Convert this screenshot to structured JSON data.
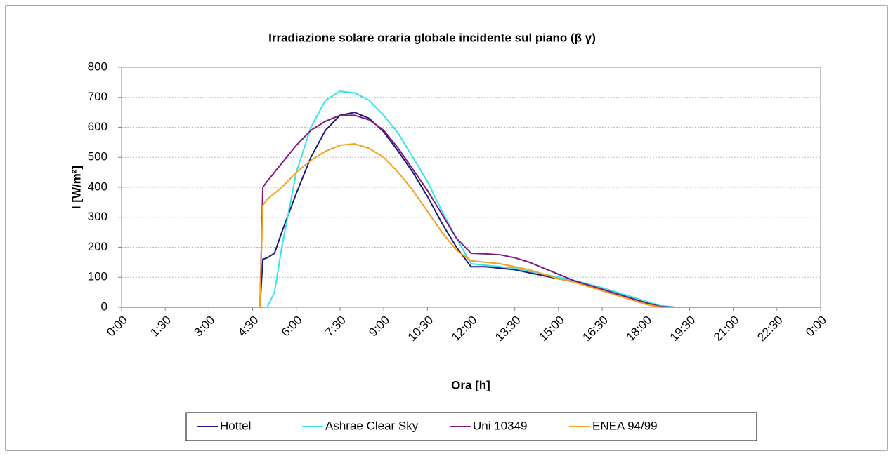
{
  "chart_data": {
    "type": "line",
    "title": "Irradiazione  solare oraria globale incidente sul piano (β γ)",
    "x_label": "Ora [h]",
    "y_label": "I [W/m²]",
    "x": [
      0,
      4.5,
      4.75,
      4.85,
      5,
      5.25,
      5.5,
      6,
      6.5,
      7,
      7.5,
      8,
      8.5,
      9,
      9.5,
      10,
      10.5,
      11,
      11.5,
      12,
      12.5,
      13,
      13.5,
      14,
      14.5,
      15,
      15.5,
      16,
      16.5,
      17,
      17.5,
      18,
      18.5,
      19,
      24
    ],
    "series": [
      {
        "name": "Hottel",
        "color": "#1a1a80",
        "values": [
          0,
          0,
          0,
          160,
          165,
          180,
          250,
          380,
          500,
          590,
          640,
          650,
          630,
          585,
          520,
          450,
          370,
          280,
          200,
          135,
          135,
          130,
          125,
          115,
          105,
          95,
          85,
          75,
          60,
          45,
          30,
          15,
          5,
          0,
          0
        ]
      },
      {
        "name": "Ashrae Clear Sky",
        "color": "#33e5e5",
        "values": [
          0,
          0,
          0,
          0,
          0,
          50,
          200,
          450,
          600,
          690,
          720,
          715,
          690,
          640,
          580,
          500,
          420,
          320,
          230,
          145,
          140,
          135,
          130,
          120,
          110,
          100,
          90,
          78,
          65,
          50,
          35,
          20,
          5,
          0,
          0
        ]
      },
      {
        "name": "Uni 10349",
        "color": "#801a80",
        "values": [
          0,
          0,
          0,
          400,
          420,
          450,
          480,
          540,
          590,
          620,
          640,
          640,
          625,
          590,
          530,
          460,
          390,
          310,
          230,
          180,
          178,
          175,
          165,
          150,
          130,
          110,
          90,
          75,
          60,
          45,
          30,
          15,
          2,
          0,
          0
        ]
      },
      {
        "name": "ENEA 94/99",
        "color": "#f5a01e",
        "values": [
          0,
          0,
          0,
          340,
          360,
          380,
          400,
          450,
          490,
          520,
          540,
          545,
          530,
          500,
          450,
          390,
          320,
          250,
          190,
          155,
          150,
          145,
          135,
          125,
          110,
          95,
          85,
          70,
          55,
          40,
          25,
          10,
          0,
          0,
          0
        ]
      }
    ],
    "xlim": [
      0,
      24
    ],
    "xticks": [
      {
        "value": 0,
        "label": "0:00"
      },
      {
        "value": 1.5,
        "label": "1:30"
      },
      {
        "value": 3,
        "label": "3:00"
      },
      {
        "value": 4.5,
        "label": "4:30"
      },
      {
        "value": 6,
        "label": "6:00"
      },
      {
        "value": 7.5,
        "label": "7:30"
      },
      {
        "value": 9,
        "label": "9:00"
      },
      {
        "value": 10.5,
        "label": "10:30"
      },
      {
        "value": 12,
        "label": "12:00"
      },
      {
        "value": 13.5,
        "label": "13:30"
      },
      {
        "value": 15,
        "label": "15:00"
      },
      {
        "value": 16.5,
        "label": "16:30"
      },
      {
        "value": 18,
        "label": "18:00"
      },
      {
        "value": 19.5,
        "label": "19:30"
      },
      {
        "value": 21,
        "label": "21:00"
      },
      {
        "value": 22.5,
        "label": "22:30"
      },
      {
        "value": 24,
        "label": "0:00"
      }
    ],
    "ylim": [
      0,
      800
    ],
    "yticks": [
      0,
      100,
      200,
      300,
      400,
      500,
      600,
      700,
      800
    ],
    "grid": true,
    "legend": "bottom"
  }
}
